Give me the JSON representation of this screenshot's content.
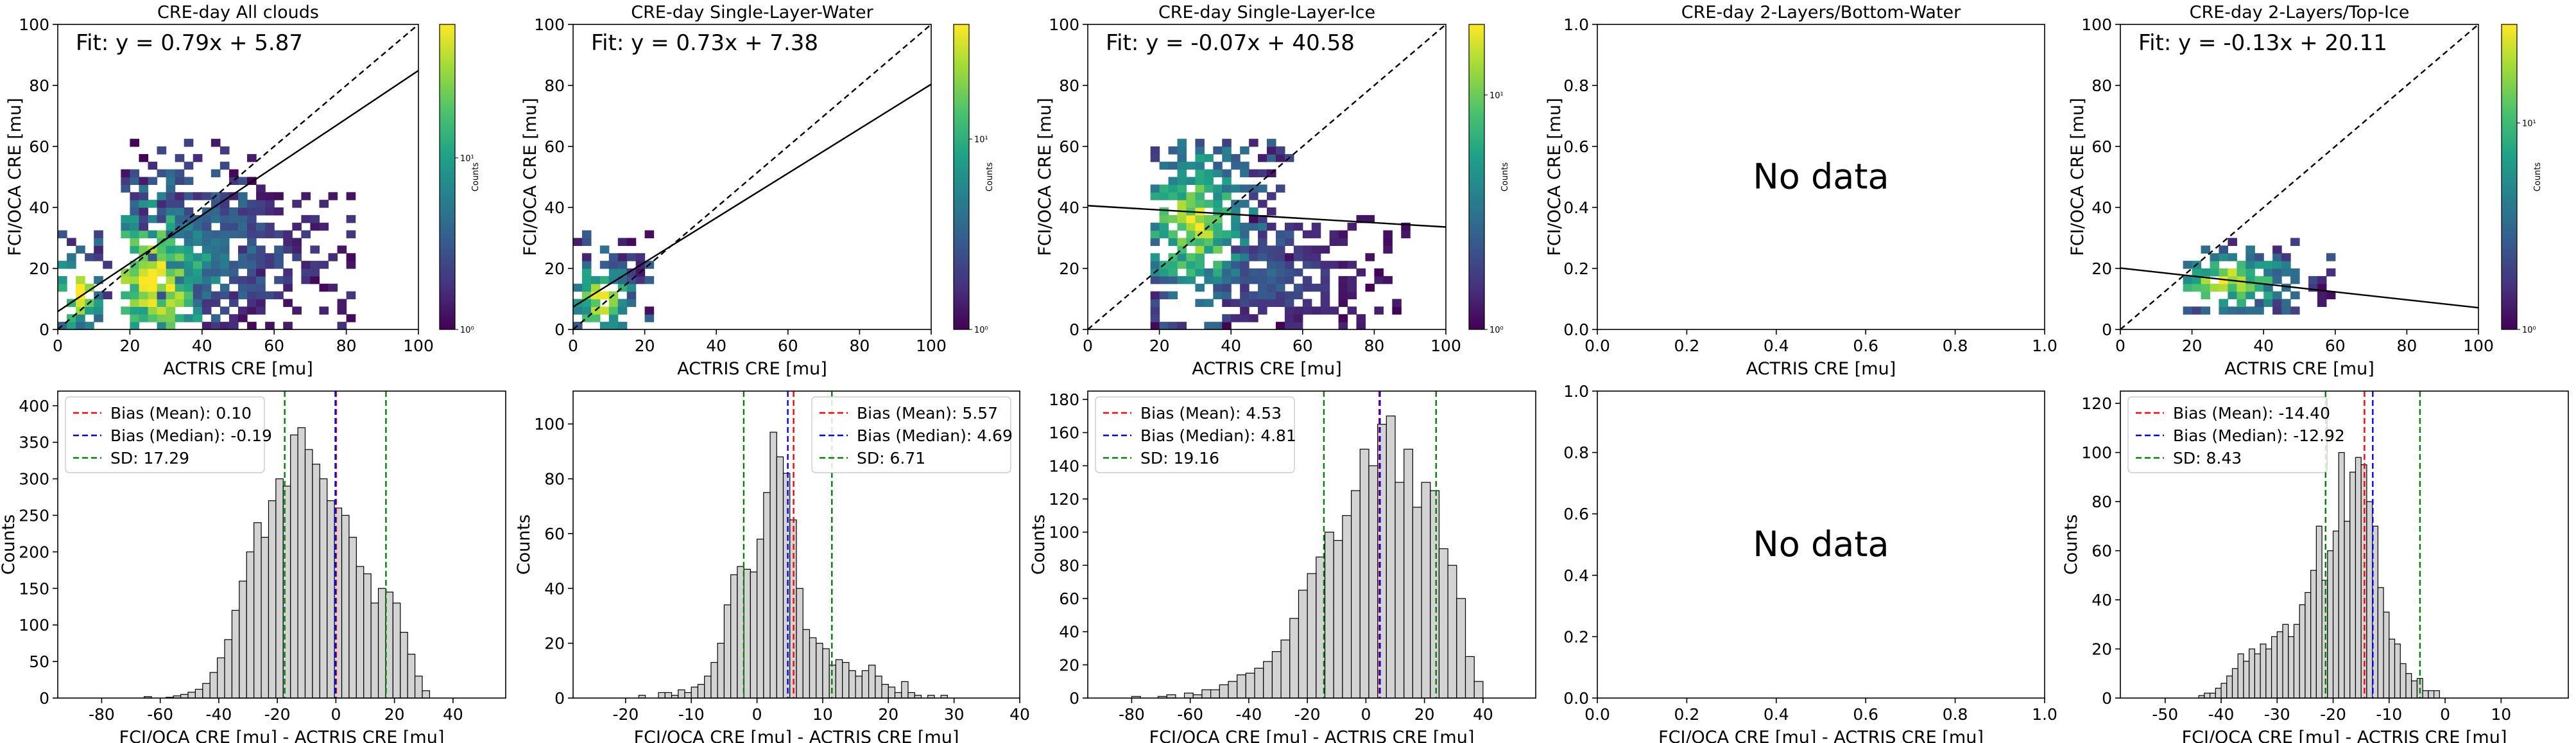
{
  "figure": {
    "background": "#ffffff"
  },
  "chart_data": [
    {
      "id": "scatter_all",
      "type": "heatmap",
      "title": "CRE-day All clouds",
      "xlabel": "ACTRIS CRE [mu]",
      "ylabel": "FCI/OCA CRE [mu]",
      "xlim": [
        0,
        100
      ],
      "ylim": [
        0,
        100
      ],
      "xticks": [
        0,
        20,
        40,
        60,
        80,
        100
      ],
      "yticks": [
        0,
        20,
        40,
        60,
        80,
        100
      ],
      "annotation": "Fit: y = 0.79x + 5.87",
      "fit": {
        "slope": 0.79,
        "intercept": 5.87
      },
      "one_to_one_line": true,
      "colorbar": {
        "label": "Counts",
        "scale": "log",
        "ticks": [
          "10⁰",
          "10¹"
        ],
        "range": [
          1,
          60
        ]
      },
      "density_regions": [
        {
          "x": [
            0,
            14
          ],
          "y": [
            0,
            32
          ],
          "peak": [
            6,
            12
          ],
          "max_log": 1.9
        },
        {
          "x": [
            18,
            58
          ],
          "y": [
            0,
            62
          ],
          "peak": [
            27,
            17
          ],
          "max_log": 1.8
        },
        {
          "x": [
            20,
            82
          ],
          "y": [
            0,
            45
          ],
          "peak": [
            40,
            25
          ],
          "max_log": 0.8
        }
      ]
    },
    {
      "id": "scatter_water",
      "type": "heatmap",
      "title": "CRE-day Single-Layer-Water",
      "xlabel": "ACTRIS CRE [mu]",
      "ylabel": "FCI/OCA CRE [mu]",
      "xlim": [
        0,
        100
      ],
      "ylim": [
        0,
        100
      ],
      "xticks": [
        0,
        20,
        40,
        60,
        80,
        100
      ],
      "yticks": [
        0,
        20,
        40,
        60,
        80,
        100
      ],
      "annotation": "Fit: y = 0.73x + 7.38",
      "fit": {
        "slope": 0.73,
        "intercept": 7.38
      },
      "one_to_one_line": true,
      "colorbar": {
        "label": "Counts",
        "scale": "log",
        "ticks": [
          "10⁰",
          "10¹"
        ],
        "range": [
          1,
          40
        ]
      },
      "density_regions": [
        {
          "x": [
            0,
            22
          ],
          "y": [
            0,
            32
          ],
          "peak": [
            8,
            10
          ],
          "max_log": 1.5
        }
      ]
    },
    {
      "id": "scatter_ice",
      "type": "heatmap",
      "title": "CRE-day Single-Layer-Ice",
      "xlabel": "ACTRIS CRE [mu]",
      "ylabel": "FCI/OCA CRE [mu]",
      "xlim": [
        0,
        100
      ],
      "ylim": [
        0,
        100
      ],
      "xticks": [
        0,
        20,
        40,
        60,
        80,
        100
      ],
      "yticks": [
        0,
        20,
        40,
        60,
        80,
        100
      ],
      "annotation": "Fit: y = -0.07x + 40.58",
      "fit": {
        "slope": -0.07,
        "intercept": 40.58
      },
      "one_to_one_line": true,
      "colorbar": {
        "label": "Counts",
        "scale": "log",
        "ticks": [
          "10⁰",
          "10¹"
        ],
        "range": [
          1,
          20
        ]
      },
      "density_regions": [
        {
          "x": [
            18,
            58
          ],
          "y": [
            0,
            62
          ],
          "peak": [
            30,
            35
          ],
          "max_log": 1.2
        },
        {
          "x": [
            40,
            90
          ],
          "y": [
            0,
            38
          ],
          "peak": [
            50,
            18
          ],
          "max_log": 0.4
        }
      ]
    },
    {
      "id": "scatter_bottom_water",
      "type": "heatmap",
      "title": "CRE-day 2-Layers/Bottom-Water",
      "xlabel": "ACTRIS CRE [mu]",
      "ylabel": "FCI/OCA CRE [mu]",
      "xlim": [
        0,
        1
      ],
      "ylim": [
        0,
        1
      ],
      "xticks": [
        "0.0",
        "0.2",
        "0.4",
        "0.6",
        "0.8",
        "1.0"
      ],
      "yticks": [
        "0.0",
        "0.2",
        "0.4",
        "0.6",
        "0.8",
        "1.0"
      ],
      "annotation": "No data"
    },
    {
      "id": "scatter_top_ice",
      "type": "heatmap",
      "title": "CRE-day 2-Layers/Top-Ice",
      "xlabel": "ACTRIS CRE [mu]",
      "ylabel": "FCI/OCA CRE [mu]",
      "xlim": [
        0,
        100
      ],
      "ylim": [
        0,
        100
      ],
      "xticks": [
        0,
        20,
        40,
        60,
        80,
        100
      ],
      "yticks": [
        0,
        20,
        40,
        60,
        80,
        100
      ],
      "annotation": "Fit: y = -0.13x + 20.11",
      "fit": {
        "slope": -0.13,
        "intercept": 20.11
      },
      "one_to_one_line": true,
      "colorbar": {
        "label": "Counts",
        "scale": "log",
        "ticks": [
          "10⁰",
          "10¹"
        ],
        "range": [
          1,
          30
        ]
      },
      "density_regions": [
        {
          "x": [
            18,
            60
          ],
          "y": [
            6,
            30
          ],
          "peak": [
            30,
            16
          ],
          "max_log": 1.4
        }
      ]
    },
    {
      "id": "hist_all",
      "type": "bar",
      "xlabel": "FCI/OCA CRE [mu] - ACTRIS CRE [mu]",
      "ylabel": "Counts",
      "xlim": [
        -95,
        58
      ],
      "ylim": [
        0,
        420
      ],
      "xticks": [
        -80,
        -60,
        -40,
        -20,
        0,
        20,
        40
      ],
      "yticks": [
        0,
        50,
        100,
        150,
        200,
        250,
        300,
        350,
        400
      ],
      "bin_start": -88,
      "bin_width": 2.5,
      "values": [
        0,
        0,
        0,
        0,
        0,
        0,
        0,
        0,
        0,
        2,
        0,
        0,
        1,
        3,
        5,
        8,
        12,
        20,
        35,
        55,
        80,
        120,
        160,
        200,
        240,
        220,
        270,
        300,
        290,
        360,
        370,
        340,
        320,
        300,
        270,
        260,
        250,
        220,
        180,
        170,
        130,
        150,
        145,
        130,
        90,
        60,
        30,
        10
      ],
      "legend": [
        {
          "label": "Bias (Mean): 0.10",
          "value": 0.1,
          "color": "#ff0000"
        },
        {
          "label": "Bias (Median): -0.19",
          "value": -0.19,
          "color": "#0000ff"
        },
        {
          "label": "SD: 17.29",
          "value": 17.29,
          "color": "#008000"
        }
      ]
    },
    {
      "id": "hist_water",
      "type": "bar",
      "xlabel": "FCI/OCA CRE [mu] - ACTRIS CRE [mu]",
      "ylabel": "Counts",
      "xlim": [
        -28,
        40
      ],
      "ylim": [
        0,
        112
      ],
      "xticks": [
        -20,
        -10,
        0,
        10,
        20,
        30,
        40
      ],
      "yticks": [
        0,
        20,
        40,
        60,
        80,
        100
      ],
      "bin_start": -18,
      "bin_width": 1,
      "values": [
        1,
        0,
        0,
        2,
        2,
        1,
        3,
        2,
        4,
        5,
        8,
        13,
        20,
        34,
        45,
        48,
        47,
        46,
        58,
        75,
        97,
        88,
        82,
        65,
        40,
        25,
        22,
        20,
        18,
        12,
        14,
        13,
        10,
        8,
        10,
        12,
        8,
        5,
        4,
        2,
        6,
        2,
        1,
        0,
        1,
        0,
        1
      ],
      "legend": [
        {
          "label": "Bias (Mean): 5.57",
          "value": 5.57,
          "color": "#ff0000"
        },
        {
          "label": "Bias (Median): 4.69",
          "value": 4.69,
          "color": "#0000ff"
        },
        {
          "label": "SD: 6.71",
          "value": 6.71,
          "color": "#008000"
        }
      ]
    },
    {
      "id": "hist_ice",
      "type": "bar",
      "xlabel": "FCI/OCA CRE [mu] - ACTRIS CRE [mu]",
      "ylabel": "Counts",
      "xlim": [
        -95,
        58
      ],
      "ylim": [
        0,
        185
      ],
      "xticks": [
        -80,
        -60,
        -40,
        -20,
        0,
        20,
        40
      ],
      "yticks": [
        0,
        20,
        40,
        60,
        80,
        100,
        120,
        140,
        160,
        180
      ],
      "bin_start": -80,
      "bin_width": 3,
      "values": [
        1,
        0,
        0,
        1,
        2,
        0,
        3,
        2,
        5,
        5,
        8,
        10,
        14,
        15,
        18,
        22,
        28,
        35,
        48,
        65,
        75,
        85,
        100,
        95,
        110,
        125,
        150,
        140,
        165,
        170,
        130,
        150,
        115,
        130,
        125,
        90,
        80,
        60,
        25,
        10
      ],
      "legend": [
        {
          "label": "Bias (Mean): 4.53",
          "value": 4.53,
          "color": "#ff0000"
        },
        {
          "label": "Bias (Median): 4.81",
          "value": 4.81,
          "color": "#0000ff"
        },
        {
          "label": "SD: 19.16",
          "value": 19.16,
          "color": "#008000"
        }
      ]
    },
    {
      "id": "hist_bottom_water",
      "type": "bar",
      "xlabel": "FCI/OCA CRE [mu] - ACTRIS CRE [mu]",
      "ylabel": "",
      "xlim": [
        0,
        1
      ],
      "ylim": [
        0,
        1
      ],
      "xticks": [
        "0.0",
        "0.2",
        "0.4",
        "0.6",
        "0.8",
        "1.0"
      ],
      "yticks": [
        "0.0",
        "0.2",
        "0.4",
        "0.6",
        "0.8",
        "1.0"
      ],
      "annotation": "No data"
    },
    {
      "id": "hist_top_ice",
      "type": "bar",
      "xlabel": "FCI/OCA CRE [mu] - ACTRIS CRE [mu]",
      "ylabel": "Counts",
      "xlim": [
        -58,
        22
      ],
      "ylim": [
        0,
        125
      ],
      "xticks": [
        -50,
        -40,
        -30,
        -20,
        -10,
        0,
        10
      ],
      "yticks": [
        0,
        20,
        40,
        60,
        80,
        100,
        120
      ],
      "bin_start": -44,
      "bin_width": 1,
      "values": [
        1,
        2,
        2,
        4,
        6,
        9,
        12,
        18,
        15,
        20,
        18,
        22,
        20,
        25,
        27,
        30,
        25,
        30,
        38,
        43,
        52,
        70,
        48,
        60,
        68,
        100,
        72,
        92,
        98,
        95,
        80,
        70,
        45,
        35,
        24,
        22,
        14,
        10,
        7,
        8,
        3,
        3,
        3
      ],
      "legend": [
        {
          "label": "Bias (Mean): -14.40",
          "value": -14.4,
          "color": "#ff0000"
        },
        {
          "label": "Bias (Median): -12.92",
          "value": -12.92,
          "color": "#0000ff"
        },
        {
          "label": "SD: 8.43",
          "value": 8.43,
          "color": "#008000"
        }
      ]
    }
  ]
}
